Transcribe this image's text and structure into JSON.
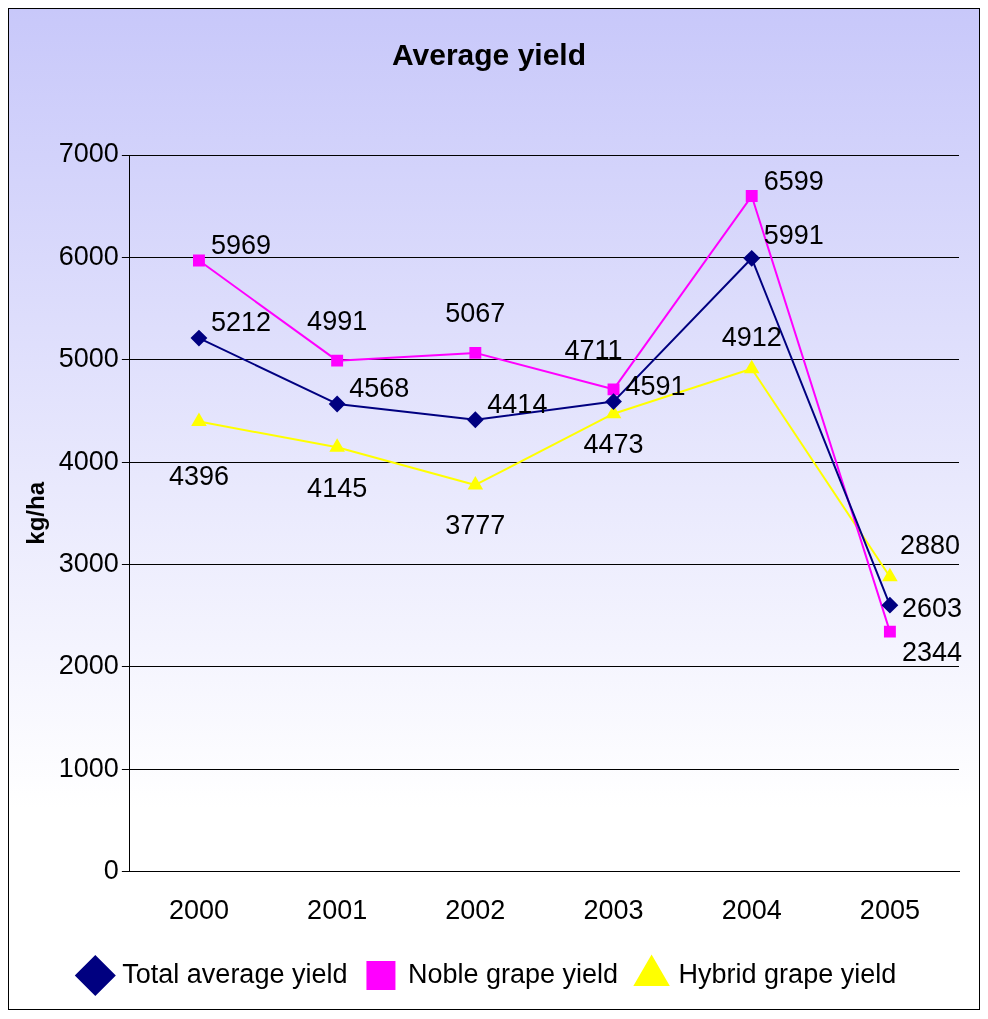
{
  "chart_data": {
    "type": "line",
    "title": "Average yield",
    "ylabel": "kg/ha",
    "categories": [
      "2000",
      "2001",
      "2002",
      "2003",
      "2004",
      "2005"
    ],
    "series": [
      {
        "name": "Total average yield",
        "color": "#000080",
        "marker": "diamond",
        "values": [
          5212,
          4568,
          4414,
          4591,
          5991,
          2603
        ]
      },
      {
        "name": "Noble grape yield",
        "color": "#ff00ff",
        "marker": "square",
        "values": [
          5969,
          4991,
          5067,
          4711,
          6599,
          2344
        ]
      },
      {
        "name": "Hybrid grape yield",
        "color": "#ffff00",
        "marker": "triangle",
        "values": [
          4396,
          4145,
          3777,
          4473,
          4912,
          2880
        ]
      }
    ],
    "ylim": [
      0,
      7000
    ],
    "yticks": [
      0,
      1000,
      2000,
      3000,
      4000,
      5000,
      6000,
      7000
    ],
    "grid": "y",
    "legend": "bottom",
    "data_labels": true
  }
}
